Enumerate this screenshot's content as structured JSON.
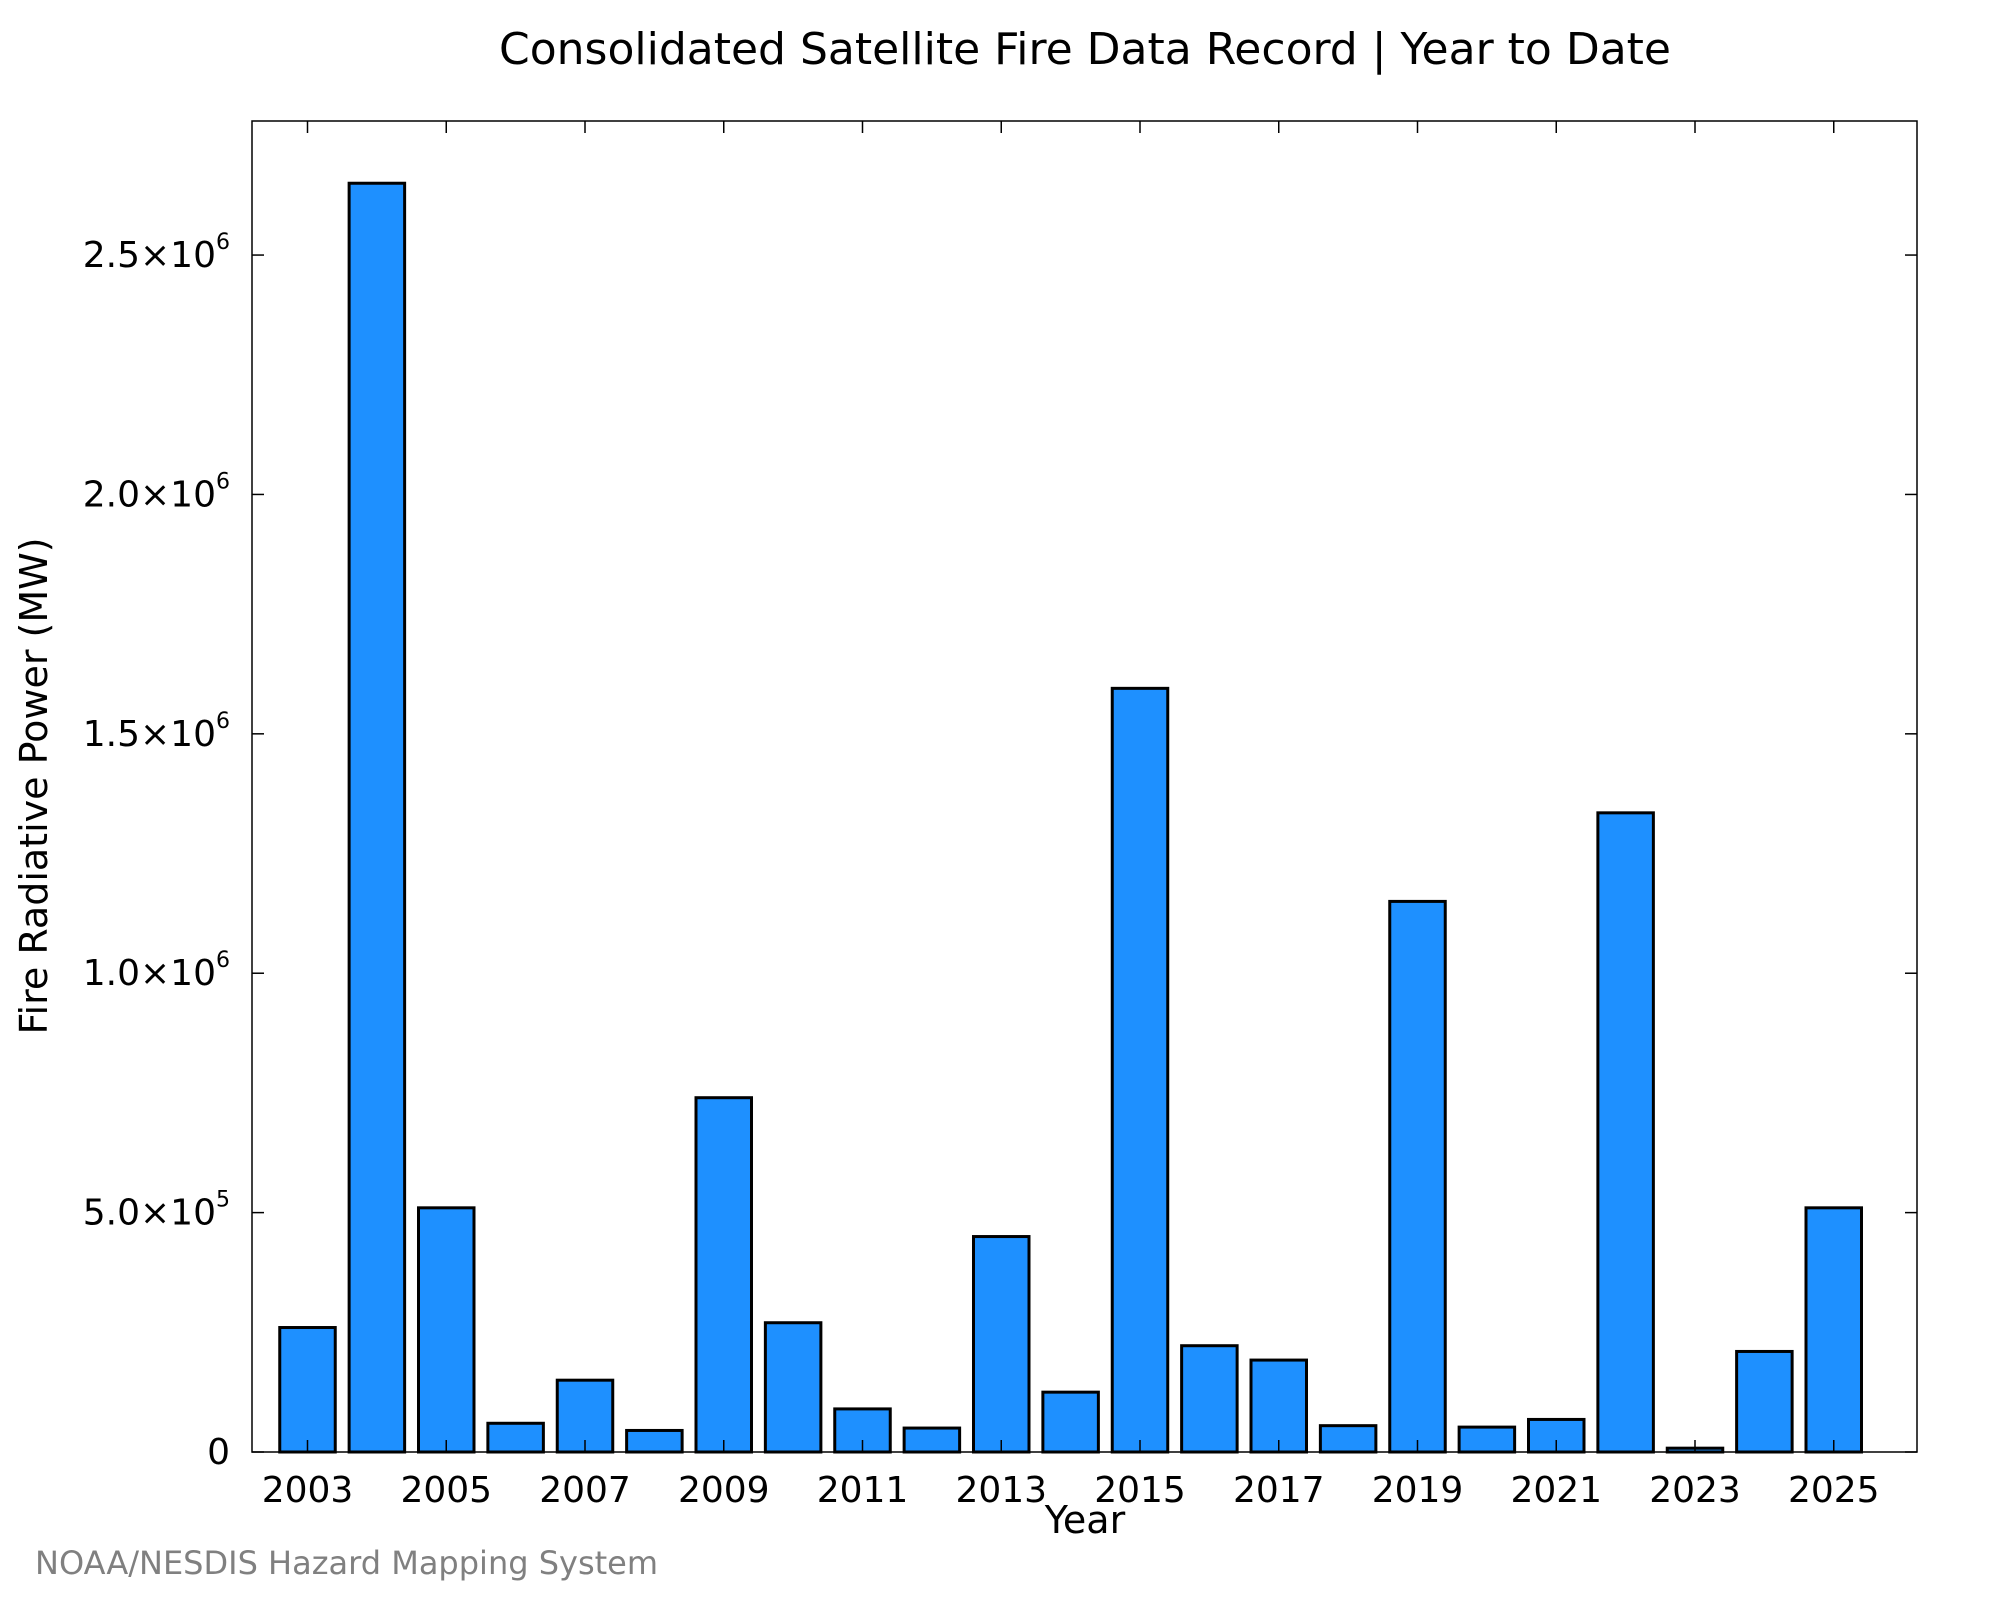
{
  "chart_data": {
    "type": "bar",
    "title": "Consolidated Satellite Fire Data Record | Year to Date",
    "xlabel": "Year",
    "ylabel": "Fire Radiative Power (MW)",
    "credit": "NOAA/NESDIS Hazard Mapping System",
    "categories": [
      2003,
      2004,
      2005,
      2006,
      2007,
      2008,
      2009,
      2010,
      2011,
      2012,
      2013,
      2014,
      2015,
      2016,
      2017,
      2018,
      2019,
      2020,
      2021,
      2022,
      2023,
      2024,
      2025
    ],
    "values": [
      260000,
      2650000,
      510000,
      60000,
      150000,
      45000,
      740000,
      270000,
      90000,
      50000,
      450000,
      125000,
      1595000,
      222000,
      192000,
      55000,
      1150000,
      52000,
      68000,
      1335000,
      8000,
      210000,
      510000
    ],
    "ylim": [
      0,
      2780000
    ],
    "xlim": [
      2002.2,
      2026.2
    ],
    "x_ticks": [
      {
        "value": 2003,
        "label": "2003"
      },
      {
        "value": 2005,
        "label": "2005"
      },
      {
        "value": 2007,
        "label": "2007"
      },
      {
        "value": 2009,
        "label": "2009"
      },
      {
        "value": 2011,
        "label": "2011"
      },
      {
        "value": 2013,
        "label": "2013"
      },
      {
        "value": 2015,
        "label": "2015"
      },
      {
        "value": 2017,
        "label": "2017"
      },
      {
        "value": 2019,
        "label": "2019"
      },
      {
        "value": 2021,
        "label": "2021"
      },
      {
        "value": 2023,
        "label": "2023"
      },
      {
        "value": 2025,
        "label": "2025"
      }
    ],
    "y_ticks": [
      {
        "value": 0,
        "mantissa": "0",
        "exponent": ""
      },
      {
        "value": 500000,
        "mantissa": "5.0×10",
        "exponent": "5"
      },
      {
        "value": 1000000,
        "mantissa": "1.0×10",
        "exponent": "6"
      },
      {
        "value": 1500000,
        "mantissa": "1.5×10",
        "exponent": "6"
      },
      {
        "value": 2000000,
        "mantissa": "2.0×10",
        "exponent": "6"
      },
      {
        "value": 2500000,
        "mantissa": "2.5×10",
        "exponent": "6"
      }
    ],
    "bar_color": "#1e90ff",
    "edge_color": "#000000",
    "credit_color": "#808080",
    "grid": false,
    "legend": "none"
  }
}
